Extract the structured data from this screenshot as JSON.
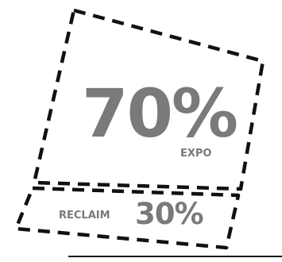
{
  "main_segment": {
    "value": "70%",
    "label": "EXPO"
  },
  "secondary_segment": {
    "label": "RECLAIM",
    "value": "30%"
  },
  "colors": {
    "text": "#7a7a7a",
    "outline": "#111111",
    "baseline": "#111111",
    "background": "#ffffff"
  }
}
